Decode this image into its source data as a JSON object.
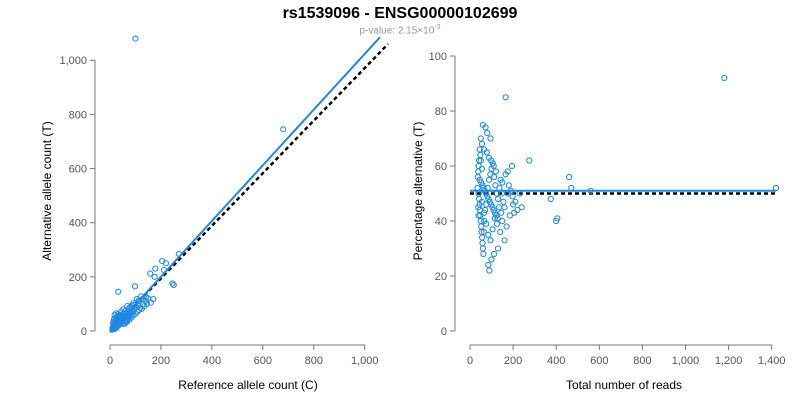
{
  "figure": {
    "title": "rs1539096 - ENSG00000102699",
    "subtitle_prefix": "p-value: 2.15×10",
    "subtitle_exponent": "-3"
  },
  "colors": {
    "points": "#1e88e5",
    "fit_line": "#1e88e5",
    "reference_line": "#000000",
    "axis": "#777777"
  },
  "chart_data": [
    {
      "type": "scatter",
      "id": "left",
      "title": "",
      "xlabel": "Reference allele count (C)",
      "ylabel": "Alternative allele count (T)",
      "xlim": [
        0,
        1060
      ],
      "ylim": [
        0,
        1100
      ],
      "xticks": [
        0,
        200,
        400,
        600,
        800,
        1000
      ],
      "xtick_labels": [
        "0",
        "200",
        "400",
        "600",
        "800",
        "1,000"
      ],
      "yticks": [
        0,
        200,
        400,
        600,
        800,
        1000
      ],
      "ytick_labels": [
        "0",
        "200",
        "400",
        "600",
        "800",
        "1,000"
      ],
      "fit_line": {
        "x": [
          0,
          1060
        ],
        "y": [
          -5,
          1085
        ]
      },
      "reference_line": {
        "x": [
          0,
          1060
        ],
        "y": [
          0,
          1060
        ]
      },
      "points": [
        [
          100,
          1080
        ],
        [
          680,
          745
        ],
        [
          220,
          250
        ],
        [
          245,
          175
        ],
        [
          250,
          170
        ],
        [
          205,
          258
        ],
        [
          270,
          285
        ],
        [
          212,
          225
        ],
        [
          175,
          200
        ],
        [
          178,
          230
        ],
        [
          158,
          212
        ],
        [
          32,
          145
        ],
        [
          98,
          165
        ],
        [
          122,
          128
        ],
        [
          105,
          118
        ],
        [
          115,
          110
        ],
        [
          92,
          102
        ],
        [
          85,
          94
        ],
        [
          80,
          88
        ],
        [
          75,
          85
        ],
        [
          68,
          92
        ],
        [
          60,
          74
        ],
        [
          55,
          65
        ],
        [
          50,
          60
        ],
        [
          45,
          55
        ],
        [
          40,
          58
        ],
        [
          38,
          50
        ],
        [
          35,
          42
        ],
        [
          30,
          40
        ],
        [
          28,
          35
        ],
        [
          25,
          30
        ],
        [
          22,
          28
        ],
        [
          20,
          25
        ],
        [
          18,
          20
        ],
        [
          15,
          18
        ],
        [
          14,
          22
        ],
        [
          12,
          15
        ],
        [
          10,
          12
        ],
        [
          22,
          45
        ],
        [
          30,
          55
        ],
        [
          42,
          45
        ],
        [
          48,
          40
        ],
        [
          55,
          48
        ],
        [
          62,
          58
        ],
        [
          70,
          60
        ],
        [
          78,
          68
        ],
        [
          88,
          75
        ],
        [
          95,
          82
        ],
        [
          102,
          90
        ],
        [
          110,
          95
        ],
        [
          118,
          85
        ],
        [
          130,
          98
        ],
        [
          140,
          112
        ],
        [
          150,
          120
        ],
        [
          20,
          8
        ],
        [
          25,
          12
        ],
        [
          30,
          18
        ],
        [
          35,
          22
        ],
        [
          40,
          28
        ],
        [
          45,
          35
        ],
        [
          50,
          38
        ],
        [
          58,
          42
        ],
        [
          65,
          50
        ],
        [
          72,
          55
        ],
        [
          82,
          62
        ],
        [
          90,
          70
        ],
        [
          18,
          60
        ],
        [
          24,
          65
        ],
        [
          26,
          50
        ],
        [
          33,
          62
        ],
        [
          44,
          72
        ],
        [
          52,
          80
        ],
        [
          60,
          35
        ],
        [
          65,
          40
        ],
        [
          70,
          48
        ],
        [
          75,
          52
        ],
        [
          15,
          35
        ],
        [
          12,
          30
        ],
        [
          16,
          45
        ],
        [
          20,
          38
        ],
        [
          28,
          48
        ],
        [
          36,
          32
        ],
        [
          42,
          38
        ],
        [
          48,
          30
        ],
        [
          54,
          25
        ],
        [
          62,
          30
        ],
        [
          68,
          36
        ],
        [
          76,
          42
        ],
        [
          84,
          50
        ],
        [
          92,
          58
        ],
        [
          100,
          64
        ],
        [
          108,
          72
        ],
        [
          114,
          78
        ],
        [
          125,
          82
        ],
        [
          135,
          92
        ],
        [
          145,
          100
        ],
        [
          160,
          105
        ],
        [
          170,
          118
        ],
        [
          10,
          5
        ],
        [
          12,
          8
        ],
        [
          14,
          10
        ],
        [
          16,
          12
        ],
        [
          18,
          14
        ],
        [
          20,
          16
        ],
        [
          22,
          18
        ],
        [
          24,
          20
        ],
        [
          26,
          22
        ],
        [
          28,
          24
        ],
        [
          30,
          26
        ],
        [
          32,
          28
        ],
        [
          34,
          30
        ],
        [
          36,
          36
        ],
        [
          38,
          38
        ],
        [
          40,
          40
        ],
        [
          44,
          44
        ],
        [
          46,
          46
        ],
        [
          50,
          50
        ],
        [
          56,
          56
        ],
        [
          64,
          64
        ],
        [
          74,
          74
        ],
        [
          86,
          86
        ],
        [
          96,
          96
        ],
        [
          112,
          112
        ],
        [
          128,
          118
        ],
        [
          142,
          125
        ]
      ]
    },
    {
      "type": "scatter",
      "id": "right",
      "title": "",
      "xlabel": "Total number of reads",
      "ylabel": "Percentage alternative (T)",
      "xlim": [
        0,
        1420
      ],
      "ylim": [
        0,
        100
      ],
      "xticks": [
        0,
        200,
        400,
        600,
        800,
        1000,
        1200,
        1400
      ],
      "xtick_labels": [
        "0",
        "200",
        "400",
        "600",
        "800",
        "1,000",
        "1,200",
        "1,400"
      ],
      "yticks": [
        0,
        20,
        40,
        60,
        80,
        100
      ],
      "ytick_labels": [
        "0",
        "20",
        "40",
        "60",
        "80",
        "100"
      ],
      "fit_line": {
        "x": [
          0,
          1420
        ],
        "y": [
          51,
          51
        ]
      },
      "reference_line": {
        "x": [
          0,
          1420
        ],
        "y": [
          50,
          50
        ]
      },
      "points": [
        [
          1180,
          92
        ],
        [
          165,
          85
        ],
        [
          1420,
          52
        ],
        [
          560,
          51
        ],
        [
          460,
          56
        ],
        [
          470,
          52
        ],
        [
          405,
          41
        ],
        [
          400,
          40
        ],
        [
          375,
          48
        ],
        [
          275,
          62
        ],
        [
          195,
          60
        ],
        [
          175,
          58
        ],
        [
          165,
          57
        ],
        [
          150,
          54
        ],
        [
          230,
          50
        ],
        [
          210,
          47
        ],
        [
          205,
          43
        ],
        [
          220,
          44
        ],
        [
          240,
          45
        ],
        [
          200,
          46
        ],
        [
          185,
          42
        ],
        [
          170,
          38
        ],
        [
          160,
          33
        ],
        [
          140,
          36
        ],
        [
          130,
          30
        ],
        [
          112,
          28
        ],
        [
          100,
          26
        ],
        [
          85,
          24
        ],
        [
          90,
          22
        ],
        [
          60,
          75
        ],
        [
          72,
          74
        ],
        [
          80,
          72
        ],
        [
          95,
          70
        ],
        [
          50,
          70
        ],
        [
          55,
          68
        ],
        [
          65,
          66
        ],
        [
          78,
          65
        ],
        [
          88,
          63
        ],
        [
          98,
          62
        ],
        [
          110,
          60
        ],
        [
          120,
          58
        ],
        [
          48,
          64
        ],
        [
          42,
          62
        ],
        [
          40,
          60
        ],
        [
          38,
          58
        ],
        [
          36,
          56
        ],
        [
          45,
          55
        ],
        [
          52,
          54
        ],
        [
          58,
          53
        ],
        [
          62,
          52
        ],
        [
          68,
          51
        ],
        [
          74,
          50
        ],
        [
          80,
          49
        ],
        [
          86,
          48
        ],
        [
          92,
          47
        ],
        [
          98,
          46
        ],
        [
          104,
          45
        ],
        [
          110,
          44
        ],
        [
          116,
          43
        ],
        [
          122,
          42
        ],
        [
          128,
          41
        ],
        [
          40,
          50
        ],
        [
          42,
          48
        ],
        [
          44,
          46
        ],
        [
          46,
          44
        ],
        [
          48,
          42
        ],
        [
          50,
          40
        ],
        [
          52,
          38
        ],
        [
          54,
          36
        ],
        [
          56,
          34
        ],
        [
          58,
          32
        ],
        [
          60,
          30
        ],
        [
          62,
          28
        ],
        [
          64,
          36
        ],
        [
          66,
          40
        ],
        [
          70,
          44
        ],
        [
          76,
          46
        ],
        [
          82,
          52
        ],
        [
          88,
          55
        ],
        [
          94,
          57
        ],
        [
          100,
          59
        ],
        [
          106,
          61
        ],
        [
          112,
          56
        ],
        [
          118,
          53
        ],
        [
          124,
          50
        ],
        [
          130,
          48
        ],
        [
          136,
          52
        ],
        [
          142,
          55
        ],
        [
          148,
          50
        ],
        [
          155,
          47
        ],
        [
          45,
          66
        ],
        [
          50,
          62
        ],
        [
          55,
          59
        ],
        [
          35,
          52
        ],
        [
          38,
          45
        ],
        [
          40,
          42
        ],
        [
          55,
          47
        ],
        [
          65,
          43
        ],
        [
          75,
          39
        ],
        [
          85,
          35
        ],
        [
          95,
          33
        ],
        [
          105,
          37
        ],
        [
          115,
          41
        ],
        [
          125,
          39
        ],
        [
          135,
          45
        ],
        [
          145,
          43
        ],
        [
          150,
          40
        ],
        [
          160,
          45
        ],
        [
          175,
          50
        ],
        [
          180,
          53
        ],
        [
          190,
          51
        ],
        [
          198,
          49
        ]
      ]
    }
  ]
}
